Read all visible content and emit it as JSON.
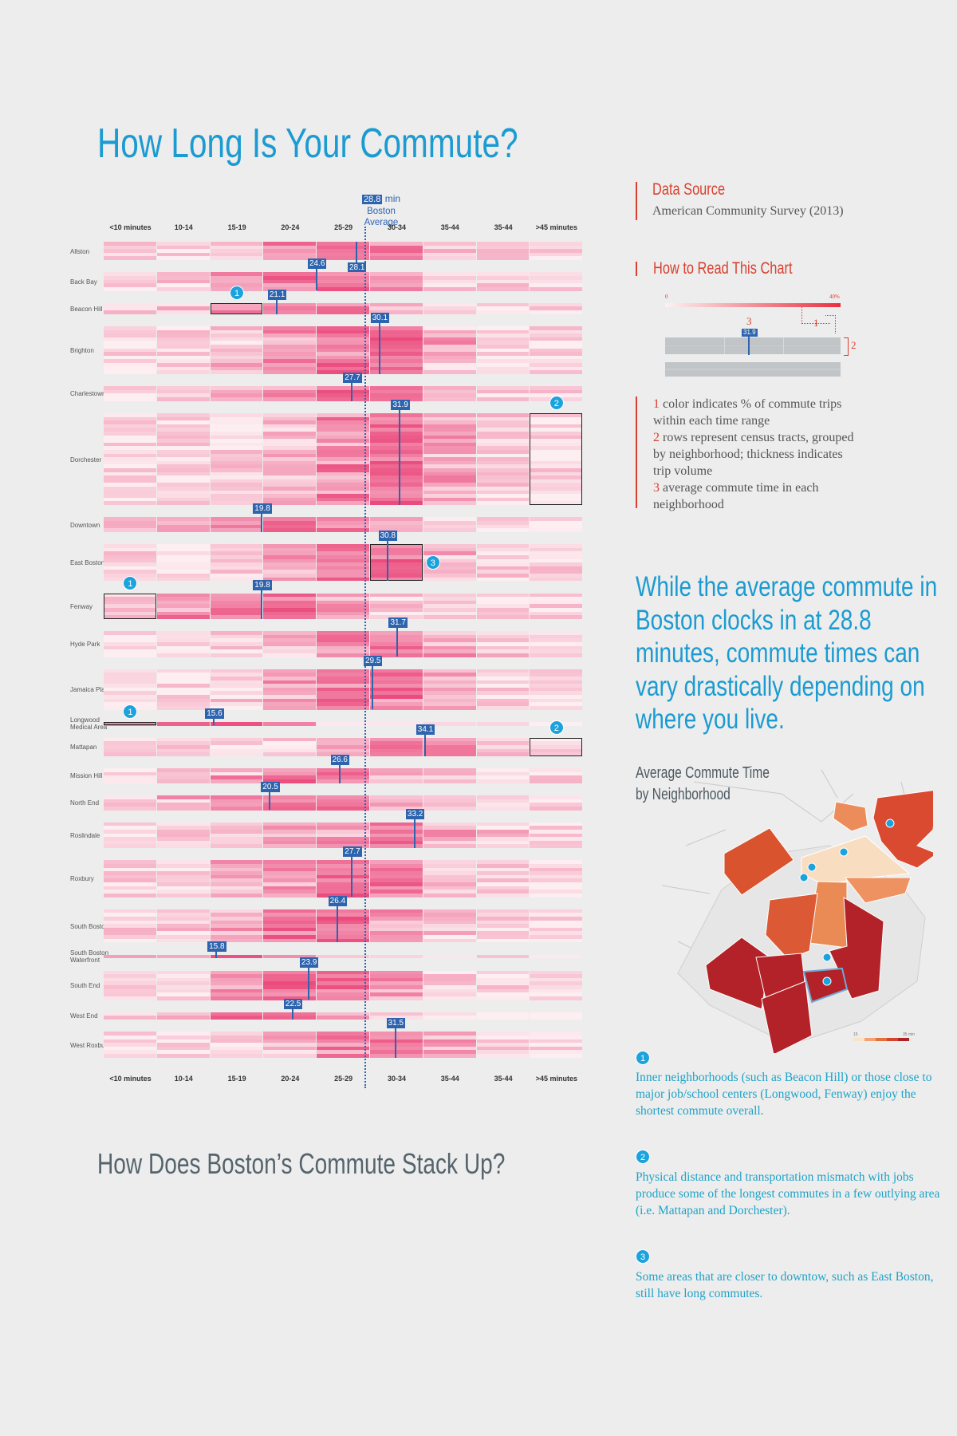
{
  "title": "How Long Is Your Commute?",
  "subtitle_bottom": "How Does Boston’s Commute Stack Up?",
  "data_source": {
    "heading": "Data Source",
    "text": "American Community Survey (2013)"
  },
  "how_to_read": {
    "heading": "How to Read This Chart",
    "scale_min": "0",
    "scale_max": "40%",
    "example_value": "31.9",
    "callouts": [
      "1",
      "2",
      "3"
    ],
    "items": [
      {
        "num": "1",
        "text": " color indicates % of commute trips within each time range"
      },
      {
        "num": "2",
        "text": " rows represent census tracts, grouped by neighborhood; thickness indicates trip volume"
      },
      {
        "num": "3",
        "text": " average commute time in each neighborhood"
      }
    ]
  },
  "blurb": "While the average commute in Boston clocks in at 28.8 minutes, commute times can vary drastically depending on where you live.",
  "map": {
    "title_line1": "Average Commute Time",
    "title_line2": "by Neighborhood",
    "legend_min": "15",
    "legend_max": "35 min",
    "colors": [
      "#fbe3c6",
      "#f2a36e",
      "#e5703f",
      "#d3452c",
      "#b1212a"
    ]
  },
  "notes": [
    {
      "badge": "1",
      "text": "Inner neighborhoods (such as Beacon Hill) or those close to major job/school centers (Longwood, Fenway) enjoy the shortest commute overall."
    },
    {
      "badge": "2",
      "text": "Physical distance and transportation mismatch with jobs produce some of the longest commutes in a few outlying area (i.e. Mattapan and Dorchester)."
    },
    {
      "badge": "3",
      "text": "Some areas that are closer to downtow, such as East Boston, still have long commutes."
    }
  ],
  "colors": {
    "title": "#1b9bd1",
    "accent_red": "#d9402f",
    "marker_blue": "#2e64ae",
    "heat_low": "#fdeef2",
    "heat_high": "#e8306a",
    "badge": "#1ca2dc"
  },
  "chart_data": {
    "type": "heatmap",
    "columns": [
      "<10 minutes",
      "10-14",
      "15-19",
      "20-24",
      "25-29",
      "30-34",
      "35-44",
      "35-44",
      ">45 minutes"
    ],
    "average": {
      "value": 28.8,
      "value_label": "28.8",
      "unit": "min",
      "label": "Boston Average"
    },
    "color_scale": {
      "min": 0,
      "max": 40,
      "unit": "%"
    },
    "neighborhoods": [
      {
        "name": "Allston",
        "avg": 28.1,
        "tracts": 5
      },
      {
        "name": "Back Bay",
        "avg": 24.6,
        "tracts": 5
      },
      {
        "name": "Beacon Hill",
        "avg": 21.1,
        "tracts": 3,
        "highlight": {
          "column": 2,
          "badge": "1"
        }
      },
      {
        "name": "Brighton",
        "avg": 30.1,
        "tracts": 13
      },
      {
        "name": "Charlestown",
        "avg": 27.7,
        "tracts": 4
      },
      {
        "name": "Dorchester",
        "avg": 31.9,
        "tracts": 25,
        "highlight": {
          "column": 8,
          "badge": "2"
        }
      },
      {
        "name": "Downtown",
        "avg": 19.8,
        "tracts": 4
      },
      {
        "name": "East Boston",
        "avg": 30.8,
        "tracts": 10,
        "highlight": {
          "column": 5,
          "badge": "3"
        }
      },
      {
        "name": "Fenway",
        "avg": 19.8,
        "tracts": 7,
        "highlight": {
          "column": 0,
          "badge": "1"
        }
      },
      {
        "name": "Hyde Park",
        "avg": 31.7,
        "tracts": 7
      },
      {
        "name": "Jamaica Plain",
        "avg": 29.5,
        "tracts": 11
      },
      {
        "name": "Longwood Medical Area",
        "avg": 15.6,
        "tracts": 1,
        "highlight": {
          "column": 0,
          "badge": "1"
        }
      },
      {
        "name": "Mattapan",
        "avg": 34.1,
        "tracts": 5,
        "highlight": {
          "column": 8,
          "badge": "2"
        }
      },
      {
        "name": "Mission Hill",
        "avg": 26.6,
        "tracts": 4
      },
      {
        "name": "North End",
        "avg": 20.5,
        "tracts": 4
      },
      {
        "name": "Roslindale",
        "avg": 33.2,
        "tracts": 7
      },
      {
        "name": "Roxbury",
        "avg": 27.7,
        "tracts": 10
      },
      {
        "name": "South Boston",
        "avg": 26.4,
        "tracts": 9
      },
      {
        "name": "South Boston Waterfront",
        "avg": 15.8,
        "tracts": 1
      },
      {
        "name": "South End",
        "avg": 23.9,
        "tracts": 8
      },
      {
        "name": "West End",
        "avg": 22.5,
        "tracts": 2
      },
      {
        "name": "West Roxbury",
        "avg": 31.5,
        "tracts": 7
      }
    ]
  }
}
